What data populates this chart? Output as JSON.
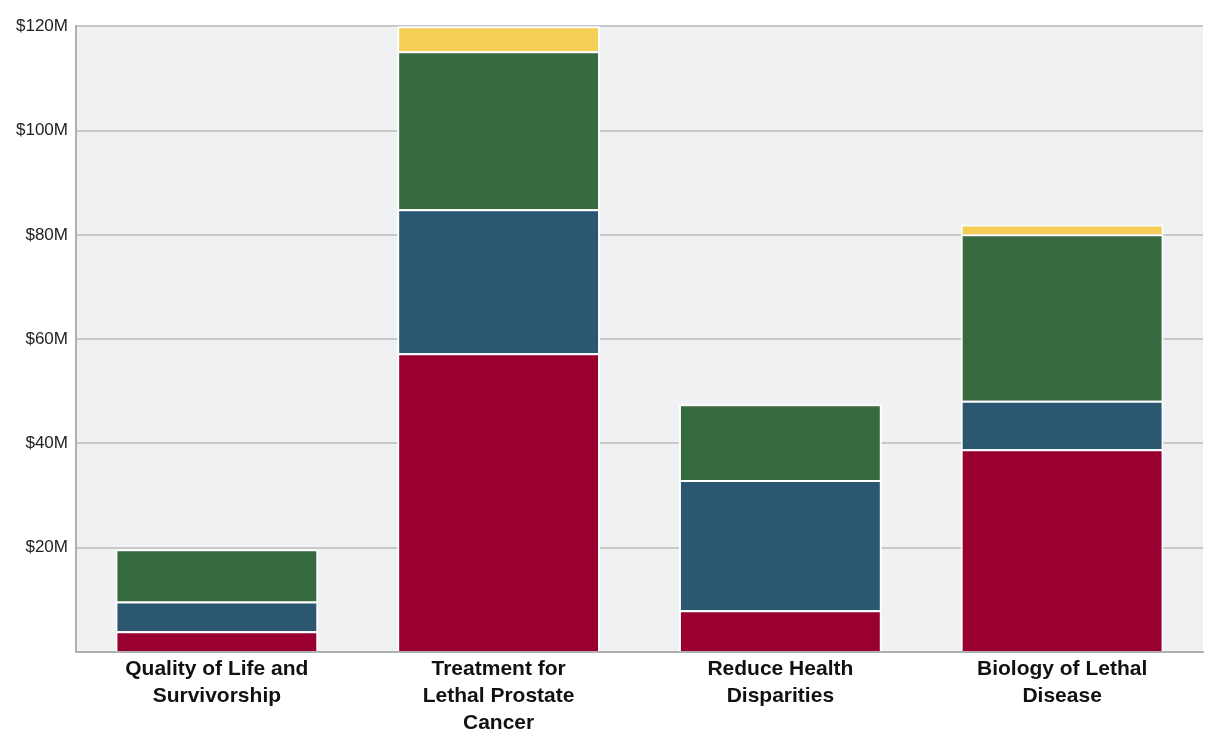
{
  "chart_data": {
    "type": "bar",
    "stacked": true,
    "categories": [
      "Quality of Life and Survivorship",
      "Treatment for Lethal Prostate Cancer",
      "Reduce Health Disparities",
      "Biology of Lethal Disease"
    ],
    "series": [
      {
        "color": "#990030",
        "values": [
          4.0,
          57.3,
          8.0,
          38.9
        ]
      },
      {
        "color": "#2b5770",
        "values": [
          5.7,
          27.6,
          25.0,
          9.3
        ]
      },
      {
        "color": "#376a3f",
        "values": [
          10.0,
          30.3,
          14.5,
          31.9
        ]
      },
      {
        "color": "#f5cf55",
        "values": [
          null,
          4.8,
          null,
          1.9
        ]
      }
    ],
    "ylim": [
      0,
      120
    ],
    "yticks": [
      {
        "value": 0,
        "label": null
      },
      {
        "value": 20,
        "label": "$20M"
      },
      {
        "value": 40,
        "label": "$40M"
      },
      {
        "value": 60,
        "label": "$60M"
      },
      {
        "value": 80,
        "label": "$80M"
      },
      {
        "value": 100,
        "label": "$100M"
      },
      {
        "value": 120,
        "label": "$120M"
      }
    ],
    "grid": "y",
    "legend": false
  }
}
